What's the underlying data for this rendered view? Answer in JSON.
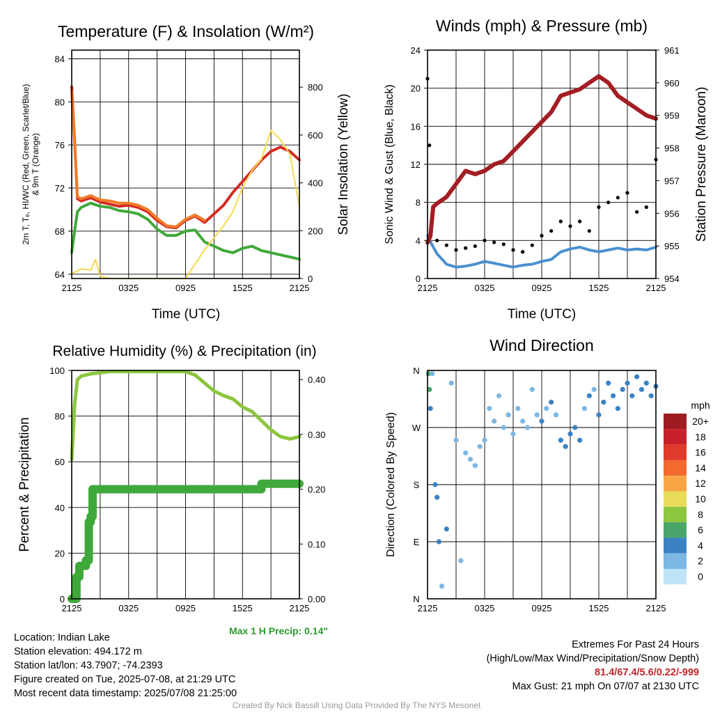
{
  "colors": {
    "temp_red": "#d42a22",
    "temp_orange": "#f07c2a",
    "dewpoint_green": "#3fa83a",
    "insolation_yellow": "#f7d94c",
    "wind_blue": "#4a90cf",
    "pressure_maroon": "#a31d22",
    "rh_green": "#8cc63f",
    "precip_green": "#3fa83a",
    "precip_label": "#2e9b2e",
    "extremes_red": "#c0272d"
  },
  "panels": {
    "temperature": {
      "title": "Temperature (F) & Insolation (W/m²)",
      "xlabel": "Time (UTC)",
      "ylabel_left_line1": "2m T, Tₑ, HI/WC (Red, Green, Scarlet/Blue)",
      "ylabel_left_line2": "& 9m T (Orange)",
      "ylabel_right": "Solar Insolation (Yellow)"
    },
    "wind": {
      "title": "Winds (mph) & Pressure (mb)",
      "xlabel": "Time (UTC)",
      "ylabel_left": "Sonic Wind & Gust (Blue, Black)",
      "ylabel_right": "Station Pressure (Maroon)"
    },
    "humidity": {
      "title": "Relative Humidity (%) & Precipitation (in)",
      "ylabel_left": "Percent & Precipitation",
      "max_precip_label": "Max 1 H Precip: 0.14\""
    },
    "direction": {
      "title": "Wind Direction",
      "ylabel_left": "Direction (Colored By Speed)",
      "legend_title": "mph",
      "legend_labels": [
        "20+",
        "18",
        "16",
        "14",
        "12",
        "10",
        "8",
        "6",
        "4",
        "2",
        "0"
      ],
      "legend_colors": [
        "#9e1b1f",
        "#c8202a",
        "#e03a2c",
        "#f26a2e",
        "#f7a545",
        "#e8dc58",
        "#8dc63f",
        "#4aa56a",
        "#3b82c4",
        "#7db7e4",
        "#bfe3f7"
      ]
    }
  },
  "chart_data": [
    {
      "type": "line",
      "title": "Temperature (F) & Insolation (W/m²)",
      "xlabel": "Time (UTC)",
      "x_ticks": [
        "2125",
        "0325",
        "0925",
        "1525",
        "2125"
      ],
      "xlim": [
        0,
        24
      ],
      "y_ticks_left": [
        64,
        68,
        72,
        76,
        80,
        84
      ],
      "ylim_left": [
        63.6,
        84.8
      ],
      "y_ticks_right": [
        0,
        200,
        400,
        600,
        800
      ],
      "ylim_right": [
        0,
        955
      ],
      "grid": true,
      "series": [
        {
          "name": "2m T (Red)",
          "axis": "left",
          "x": [
            0,
            0.3,
            0.6,
            1,
            2,
            3,
            4,
            5,
            6,
            7,
            8,
            9,
            10,
            11,
            12,
            13,
            14,
            15,
            16,
            17,
            18,
            19,
            20,
            21,
            22,
            23,
            24
          ],
          "values": [
            81.4,
            76.5,
            71.0,
            70.8,
            71.1,
            70.7,
            70.5,
            70.3,
            70.4,
            70.2,
            69.8,
            69.0,
            68.4,
            68.3,
            69.0,
            69.4,
            68.8,
            69.6,
            70.4,
            71.6,
            72.6,
            73.6,
            74.6,
            75.4,
            75.8,
            75.4,
            74.6
          ]
        },
        {
          "name": "9m T (Orange)",
          "axis": "left",
          "x": [
            0,
            0.3,
            0.6,
            1,
            2,
            3,
            4,
            5,
            6,
            7,
            8,
            9,
            10,
            11,
            12,
            13,
            14
          ],
          "values": [
            81.0,
            76.2,
            71.2,
            71.0,
            71.3,
            70.9,
            70.8,
            70.6,
            70.6,
            70.4,
            70.0,
            69.2,
            68.5,
            68.4,
            69.1,
            69.5,
            69.0
          ]
        },
        {
          "name": "Td (Green)",
          "axis": "left",
          "x": [
            0,
            0.3,
            0.6,
            1,
            2,
            3,
            4,
            5,
            6,
            7,
            8,
            9,
            10,
            11,
            12,
            13,
            14,
            15,
            16,
            17,
            18,
            19,
            20,
            21,
            22,
            23,
            24
          ],
          "values": [
            66.0,
            68.0,
            69.8,
            70.2,
            70.6,
            70.3,
            70.2,
            69.9,
            69.8,
            69.6,
            69.1,
            68.2,
            67.6,
            67.6,
            68.0,
            68.1,
            67.0,
            66.6,
            66.2,
            66.0,
            66.4,
            66.6,
            66.2,
            66.0,
            65.8,
            65.6,
            65.4
          ]
        },
        {
          "name": "Solar Insolation (Yellow)",
          "axis": "right",
          "x": [
            0,
            1,
            2,
            2.5,
            3,
            4,
            6,
            8,
            10,
            12,
            13,
            14,
            15,
            16,
            17,
            18,
            19,
            20,
            21,
            22,
            23,
            24
          ],
          "values": [
            20,
            40,
            35,
            80,
            10,
            0,
            0,
            0,
            0,
            0,
            60,
            120,
            170,
            220,
            280,
            380,
            450,
            500,
            620,
            580,
            520,
            300
          ]
        }
      ]
    },
    {
      "type": "line",
      "title": "Winds (mph) & Pressure (mb)",
      "xlabel": "Time (UTC)",
      "x_ticks": [
        "2125",
        "0325",
        "0925",
        "1525",
        "2125"
      ],
      "xlim": [
        0,
        24
      ],
      "y_ticks_left": [
        0,
        4,
        8,
        12,
        16,
        20,
        24
      ],
      "ylim_left": [
        0,
        24
      ],
      "y_ticks_right": [
        954,
        955,
        956,
        957,
        958,
        959,
        960,
        961
      ],
      "ylim_right": [
        954,
        961
      ],
      "grid": true,
      "series": [
        {
          "name": "Sonic Wind (Blue)",
          "axis": "left",
          "x": [
            0,
            0.5,
            1,
            2,
            3,
            4,
            5,
            6,
            7,
            8,
            9,
            10,
            11,
            12,
            13,
            14,
            15,
            16,
            17,
            18,
            19,
            20,
            21,
            22,
            23,
            24
          ],
          "values": [
            4.5,
            3.5,
            2.6,
            1.5,
            1.2,
            1.3,
            1.5,
            1.8,
            1.6,
            1.4,
            1.2,
            1.4,
            1.5,
            1.8,
            2.0,
            2.8,
            3.1,
            3.3,
            3.0,
            2.8,
            3.0,
            3.2,
            3.0,
            3.1,
            3.0,
            3.3
          ]
        },
        {
          "name": "Gust (Black)",
          "axis": "left",
          "x": [
            0,
            0.2,
            0.5,
            1,
            2,
            3,
            4,
            5,
            6,
            7,
            8,
            9,
            10,
            11,
            12,
            13,
            14,
            15,
            16,
            17,
            18,
            19,
            20,
            21,
            22,
            23,
            24
          ],
          "values": [
            21,
            14,
            6.5,
            4.0,
            3.5,
            3.0,
            3.2,
            3.4,
            4.0,
            3.8,
            3.6,
            3.0,
            2.8,
            3.5,
            4.5,
            5.0,
            6.0,
            5.5,
            6.0,
            5.0,
            7.5,
            8.0,
            8.5,
            9.0,
            7.0,
            7.5,
            12.5
          ]
        },
        {
          "name": "Station Pressure (Maroon)",
          "axis": "right",
          "x": [
            0,
            0.3,
            0.6,
            1,
            2,
            3,
            4,
            5,
            6,
            7,
            8,
            9,
            10,
            11,
            12,
            13,
            14,
            15,
            16,
            17,
            18,
            19,
            20,
            21,
            22,
            23,
            24
          ],
          "values": [
            955.1,
            955.3,
            956.2,
            956.3,
            956.5,
            956.9,
            957.3,
            957.2,
            957.3,
            957.5,
            957.6,
            957.9,
            958.2,
            958.5,
            958.8,
            959.1,
            959.6,
            959.7,
            959.8,
            960.0,
            960.2,
            960.0,
            959.6,
            959.4,
            959.2,
            959.0,
            958.9
          ]
        }
      ]
    },
    {
      "type": "line",
      "title": "Relative Humidity (%) & Precipitation (in)",
      "x_ticks": [
        "2125",
        "0325",
        "0925",
        "1525",
        "2125"
      ],
      "xlim": [
        0,
        24
      ],
      "y_ticks_left": [
        0,
        20,
        40,
        60,
        80,
        100
      ],
      "ylim_left": [
        0,
        100
      ],
      "y_ticks_right": [
        "0.00",
        "0.10",
        "0.20",
        "0.30",
        "0.40"
      ],
      "ylim_right": [
        0,
        0.4167
      ],
      "grid": true,
      "series": [
        {
          "name": "Relative Humidity",
          "axis": "left",
          "x": [
            0,
            0.3,
            0.6,
            1,
            2,
            3,
            4,
            5,
            6,
            7,
            8,
            9,
            10,
            11,
            12,
            13,
            14,
            15,
            16,
            17,
            18,
            19,
            20,
            21,
            22,
            23,
            24
          ],
          "values": [
            61,
            85,
            96,
            97.5,
            98.5,
            99,
            99.5,
            99.5,
            99.5,
            99.5,
            99.5,
            99.5,
            99.5,
            99.5,
            99.5,
            98.0,
            94.5,
            91.0,
            89.0,
            87.5,
            84.0,
            82.0,
            78.0,
            74.0,
            71.0,
            70.0,
            71.0
          ]
        },
        {
          "name": "Precipitation",
          "axis": "right",
          "x": [
            0,
            0.3,
            0.5,
            0.8,
            1.2,
            1.5,
            1.8,
            2.0,
            2.2,
            3,
            6,
            10,
            14,
            18,
            19.5,
            20,
            22,
            24
          ],
          "values": [
            0.0,
            0.0,
            0.04,
            0.06,
            0.06,
            0.07,
            0.14,
            0.15,
            0.2,
            0.2,
            0.2,
            0.2,
            0.2,
            0.2,
            0.2,
            0.21,
            0.21,
            0.21
          ]
        }
      ]
    },
    {
      "type": "scatter",
      "title": "Wind Direction",
      "x_ticks": [
        "2125",
        "0325",
        "0925",
        "1525",
        "2125"
      ],
      "xlim": [
        0,
        24
      ],
      "y_ticks": [
        "N",
        "W",
        "S",
        "E",
        "N"
      ],
      "y_tick_degrees": [
        360,
        270,
        180,
        90,
        0
      ],
      "ylim": [
        0,
        360
      ],
      "grid": true,
      "color_scale": "speed (mph)",
      "points": [
        {
          "x": 0.1,
          "dir": 355,
          "mph": 6
        },
        {
          "x": 0.2,
          "dir": 330,
          "mph": 5
        },
        {
          "x": 0.3,
          "dir": 300,
          "mph": 4
        },
        {
          "x": 0.5,
          "dir": 355,
          "mph": 2
        },
        {
          "x": 0.8,
          "dir": 180,
          "mph": 3
        },
        {
          "x": 1.0,
          "dir": 160,
          "mph": 4
        },
        {
          "x": 1.2,
          "dir": 90,
          "mph": 3
        },
        {
          "x": 1.5,
          "dir": 20,
          "mph": 2
        },
        {
          "x": 2.0,
          "dir": 110,
          "mph": 4
        },
        {
          "x": 2.5,
          "dir": 340,
          "mph": 1
        },
        {
          "x": 3.0,
          "dir": 250,
          "mph": 1
        },
        {
          "x": 3.5,
          "dir": 60,
          "mph": 1
        },
        {
          "x": 4.0,
          "dir": 230,
          "mph": 2
        },
        {
          "x": 4.5,
          "dir": 220,
          "mph": 1
        },
        {
          "x": 5.0,
          "dir": 210,
          "mph": 2
        },
        {
          "x": 5.5,
          "dir": 240,
          "mph": 1
        },
        {
          "x": 6.0,
          "dir": 250,
          "mph": 2
        },
        {
          "x": 6.5,
          "dir": 300,
          "mph": 1
        },
        {
          "x": 7.0,
          "dir": 280,
          "mph": 2
        },
        {
          "x": 7.5,
          "dir": 320,
          "mph": 1
        },
        {
          "x": 8.0,
          "dir": 270,
          "mph": 2
        },
        {
          "x": 8.5,
          "dir": 290,
          "mph": 1
        },
        {
          "x": 9.0,
          "dir": 260,
          "mph": 2
        },
        {
          "x": 9.5,
          "dir": 300,
          "mph": 1
        },
        {
          "x": 10.0,
          "dir": 280,
          "mph": 2
        },
        {
          "x": 10.5,
          "dir": 270,
          "mph": 2
        },
        {
          "x": 11.0,
          "dir": 330,
          "mph": 1
        },
        {
          "x": 11.5,
          "dir": 290,
          "mph": 2
        },
        {
          "x": 12.0,
          "dir": 280,
          "mph": 3
        },
        {
          "x": 12.5,
          "dir": 300,
          "mph": 2
        },
        {
          "x": 13.0,
          "dir": 310,
          "mph": 3
        },
        {
          "x": 13.5,
          "dir": 290,
          "mph": 2
        },
        {
          "x": 14.0,
          "dir": 250,
          "mph": 3
        },
        {
          "x": 14.5,
          "dir": 240,
          "mph": 4
        },
        {
          "x": 15.0,
          "dir": 260,
          "mph": 3
        },
        {
          "x": 15.5,
          "dir": 270,
          "mph": 4
        },
        {
          "x": 16.0,
          "dir": 250,
          "mph": 3
        },
        {
          "x": 16.5,
          "dir": 300,
          "mph": 2
        },
        {
          "x": 17.0,
          "dir": 320,
          "mph": 3
        },
        {
          "x": 17.5,
          "dir": 330,
          "mph": 2
        },
        {
          "x": 18.0,
          "dir": 290,
          "mph": 3
        },
        {
          "x": 18.5,
          "dir": 310,
          "mph": 4
        },
        {
          "x": 19.0,
          "dir": 340,
          "mph": 3
        },
        {
          "x": 19.5,
          "dir": 320,
          "mph": 4
        },
        {
          "x": 20.0,
          "dir": 300,
          "mph": 3
        },
        {
          "x": 20.5,
          "dir": 330,
          "mph": 4
        },
        {
          "x": 21.0,
          "dir": 340,
          "mph": 4
        },
        {
          "x": 21.5,
          "dir": 320,
          "mph": 3
        },
        {
          "x": 22.0,
          "dir": 350,
          "mph": 4
        },
        {
          "x": 22.5,
          "dir": 330,
          "mph": 4
        },
        {
          "x": 23.0,
          "dir": 340,
          "mph": 4
        },
        {
          "x": 23.5,
          "dir": 320,
          "mph": 4
        },
        {
          "x": 24.0,
          "dir": 335,
          "mph": 4
        }
      ]
    }
  ],
  "info": {
    "location": "Location: Indian Lake",
    "elevation": "Station elevation: 494.172 m",
    "latlon": "Station lat/lon: 43.7907; -74.2393",
    "created": "Figure created on Tue, 2025-07-08, at 21:29 UTC",
    "recent": "Most recent data timestamp: 2025/07/08 21:25:00"
  },
  "extremes": {
    "title": "Extremes For Past 24 Hours",
    "subtitle": "(High/Low/Max Wind/Precipitation/Snow Depth)",
    "values": "81.4/67.4/5.6/0.22/-999",
    "gust": "Max Gust: 21 mph On 07/07 at 2130 UTC"
  },
  "credit": "Created By Nick Bassill Using Data Provided By The NYS Mesonet"
}
